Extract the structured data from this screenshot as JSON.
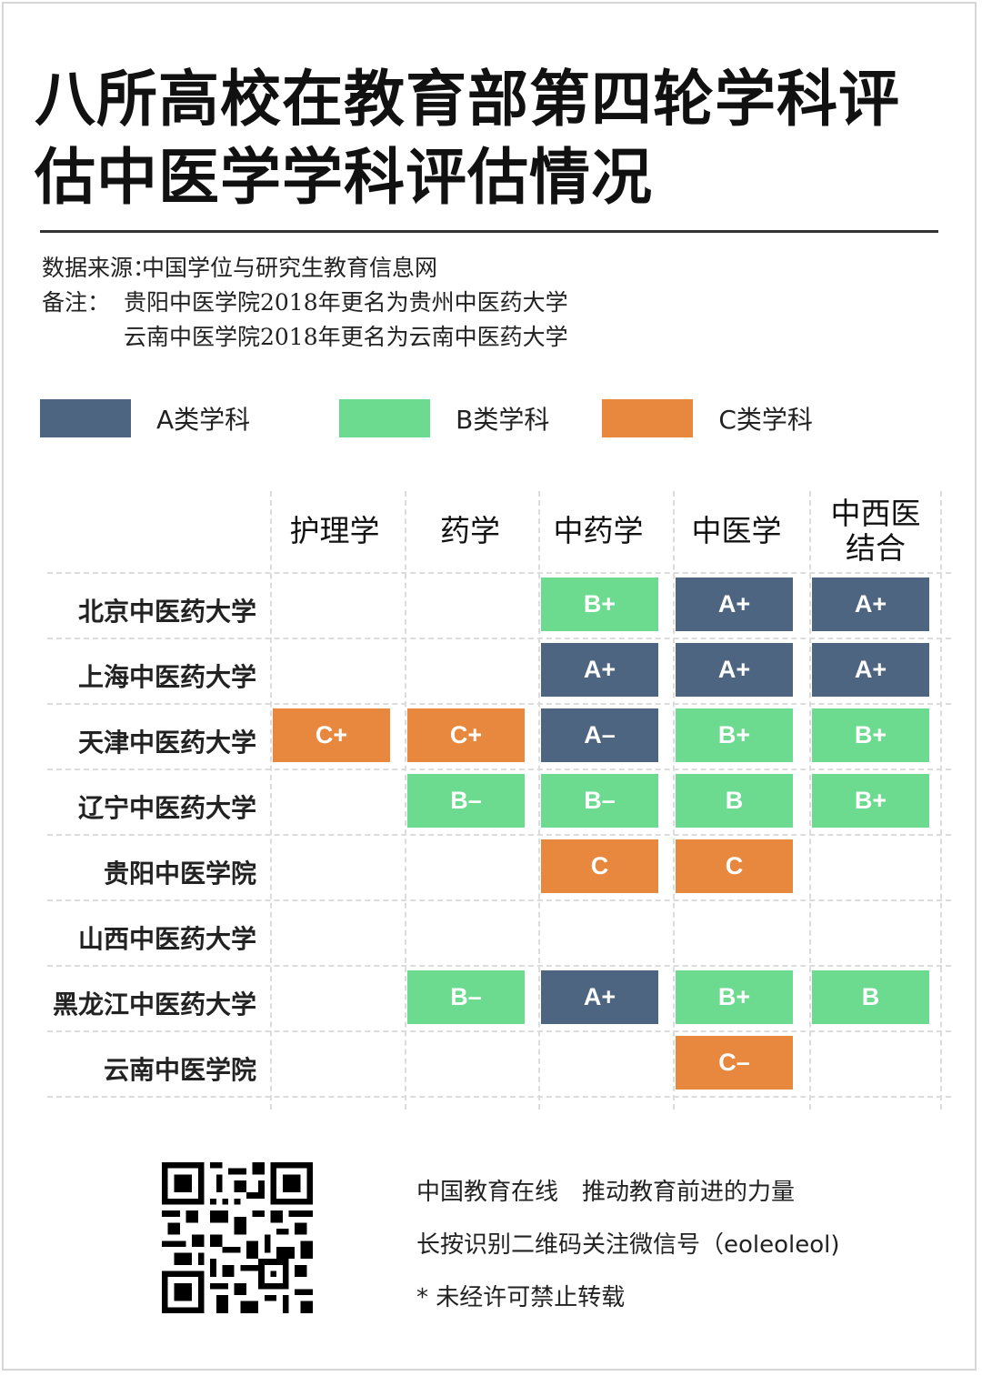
{
  "title": "八所高校在教育部第四轮学科评估中医学学科评估情况",
  "title_lines": [
    "八所高校在教育部第四轮学科评",
    "估中医学学科评估情况"
  ],
  "meta": {
    "source_label": "数据来源：",
    "source_value": "中国学位与研究生教育信息网",
    "note_label": "备注：",
    "note_line1": "贵阳中医学院2018年更名为贵州中医药大学",
    "note_line2": "云南中医学院2018年更名为云南中医药大学"
  },
  "legend": [
    {
      "label": "A类学科",
      "color": "#4d6580"
    },
    {
      "label": "B类学科",
      "color": "#6cdb8f"
    },
    {
      "label": "C类学科",
      "color": "#e8883e"
    }
  ],
  "colors": {
    "A": "#4d6580",
    "B": "#6cdb8f",
    "C": "#e8883e"
  },
  "footer": {
    "line1": "中国教育在线　推动教育前进的力量",
    "line2": "长按识别二维码关注微信号（eoleoleol)",
    "line3": "* 未经许可禁止转载"
  },
  "chart_data": {
    "type": "table",
    "title": "八所高校在教育部第四轮学科评估中医学学科评估情况",
    "columns": [
      "护理学",
      "药学",
      "中药学",
      "中医学",
      "中西医结合"
    ],
    "columns_display": [
      "护理学",
      "药学",
      "中药学",
      "中医学",
      "中西医\n结合"
    ],
    "rows": [
      "北京中医药大学",
      "上海中医药大学",
      "天津中医药大学",
      "辽宁中医药大学",
      "贵阳中医学院",
      "山西中医药大学",
      "黑龙江中医药大学",
      "云南中医学院"
    ],
    "values": [
      [
        "",
        "",
        "B+",
        "A+",
        "A+"
      ],
      [
        "",
        "",
        "A+",
        "A+",
        "A+"
      ],
      [
        "C+",
        "C+",
        "A-",
        "B+",
        "B+"
      ],
      [
        "",
        "B-",
        "B-",
        "B",
        "B+"
      ],
      [
        "",
        "",
        "C",
        "C",
        ""
      ],
      [
        "",
        "",
        "",
        "",
        ""
      ],
      [
        "",
        "B-",
        "A+",
        "B+",
        "B"
      ],
      [
        "",
        "",
        "",
        "C-",
        ""
      ]
    ],
    "legend": [
      "A类学科",
      "B类学科",
      "C类学科"
    ]
  }
}
